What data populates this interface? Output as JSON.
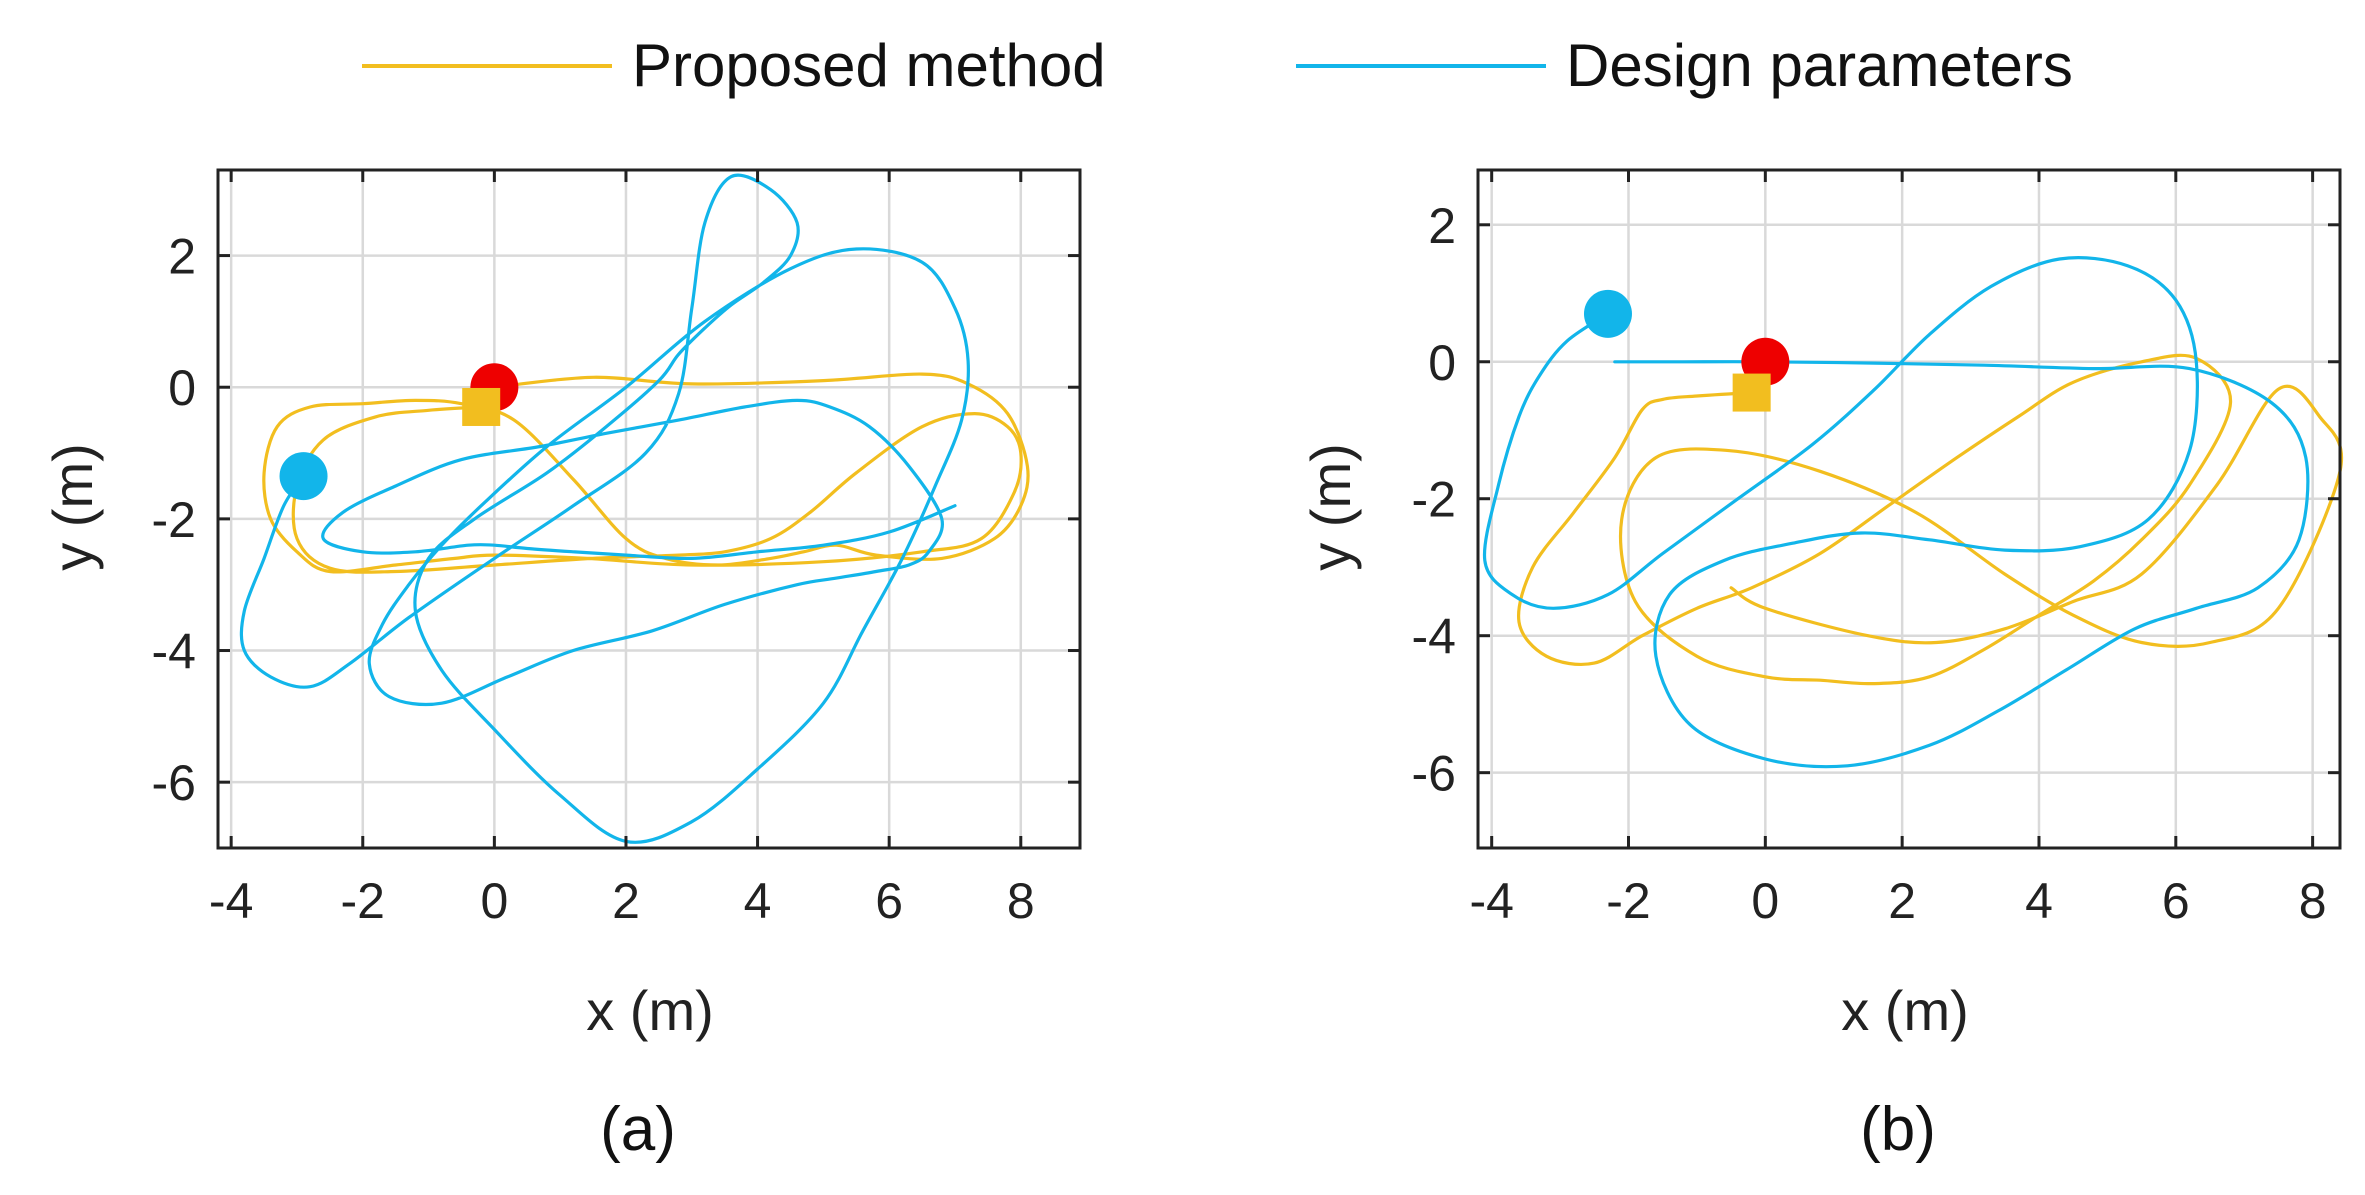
{
  "legend": {
    "items": [
      {
        "label": "Proposed method",
        "color": "#F2BE1F"
      },
      {
        "label": "Design parameters",
        "color": "#12B5EA"
      }
    ]
  },
  "colors": {
    "start_marker": "#EE0000",
    "proposed": "#F2BE1F",
    "design": "#12B5EA",
    "grid": "#d9d9d9",
    "axis": "#222222"
  },
  "chart_data": [
    {
      "type": "line",
      "caption": "(a)",
      "xlabel": "x (m)",
      "ylabel": "y (m)",
      "xlim": [
        -4.2,
        8.9
      ],
      "ylim": [
        -7.0,
        3.3
      ],
      "xticks": [
        -4,
        -2,
        0,
        2,
        4,
        6,
        8
      ],
      "yticks": [
        -6,
        -4,
        -2,
        0,
        2
      ],
      "grid": true,
      "markers": [
        {
          "shape": "circle",
          "color": "#EE0000",
          "x": 0.0,
          "y": 0.0
        },
        {
          "shape": "square",
          "color": "#F2BE1F",
          "x": -0.2,
          "y": -0.3
        },
        {
          "shape": "circle",
          "color": "#12B5EA",
          "x": -2.9,
          "y": -1.35
        }
      ],
      "series": [
        {
          "name": "Proposed method",
          "color": "#F2BE1F",
          "x": [
            0.0,
            1.5,
            3.0,
            5.0,
            6.5,
            7.2,
            7.8,
            8.1,
            8.0,
            7.6,
            6.8,
            5.8,
            5.2,
            4.7,
            4.2,
            3.4,
            2.6,
            2.0,
            1.2,
            0.3,
            -0.5,
            -1.2,
            -2.0,
            -2.8,
            -3.3,
            -3.5,
            -3.4,
            -3.0,
            -2.5,
            -1.5,
            -0.6,
            0.0,
            1.4,
            3.0,
            5.0,
            6.5,
            7.4,
            7.9,
            8.0,
            7.8,
            7.3,
            6.5,
            5.5,
            4.8,
            4.2,
            3.5,
            2.8,
            1.5,
            0.0,
            -1.5,
            -2.5,
            -3.0,
            -3.0,
            -2.6,
            -1.8,
            -1.0,
            -0.2
          ],
          "y": [
            0.0,
            0.15,
            0.05,
            0.1,
            0.2,
            0.05,
            -0.4,
            -1.2,
            -1.8,
            -2.3,
            -2.6,
            -2.55,
            -2.4,
            -2.5,
            -2.6,
            -2.7,
            -2.6,
            -2.3,
            -1.4,
            -0.5,
            -0.25,
            -0.2,
            -0.25,
            -0.3,
            -0.6,
            -1.3,
            -2.0,
            -2.5,
            -2.8,
            -2.7,
            -2.6,
            -2.55,
            -2.6,
            -2.7,
            -2.65,
            -2.5,
            -2.3,
            -1.6,
            -1.0,
            -0.6,
            -0.4,
            -0.6,
            -1.3,
            -1.9,
            -2.3,
            -2.5,
            -2.55,
            -2.6,
            -2.7,
            -2.8,
            -2.75,
            -2.3,
            -1.5,
            -0.8,
            -0.45,
            -0.35,
            -0.3
          ]
        },
        {
          "name": "Design parameters",
          "color": "#12B5EA",
          "x": [
            -2.9,
            -3.2,
            -3.5,
            -3.8,
            -3.8,
            -3.4,
            -2.8,
            -2.2,
            -1.3,
            0.0,
            1.2,
            2.3,
            2.8,
            3.0,
            3.2,
            3.6,
            4.2,
            4.6,
            4.5,
            4.1,
            3.6,
            3.2,
            2.8,
            2.5,
            1.7,
            0.8,
            -0.3,
            -1.0,
            -1.2,
            -0.8,
            0.0,
            1.0,
            2.0,
            3.0,
            4.0,
            5.0,
            5.6,
            6.2,
            6.7,
            7.1,
            7.2,
            7.0,
            6.5,
            5.5,
            4.5,
            3.2,
            2.0,
            0.8,
            -0.2,
            -0.8,
            -1.3,
            -1.7,
            -1.9,
            -1.6,
            -0.8,
            0.2,
            1.2,
            2.4,
            3.5,
            4.6,
            5.2,
            5.8,
            6.3,
            6.6,
            6.8,
            6.3,
            5.7,
            5.1,
            4.6,
            3.8,
            2.8,
            1.7,
            0.7,
            -0.5,
            -1.5,
            -2.3,
            -2.6,
            -2.0,
            -1.2,
            -0.4,
            0.0,
            0.5,
            1.2,
            2.0,
            3.0,
            4.0,
            5.0,
            6.0,
            7.0
          ],
          "y": [
            -1.35,
            -1.8,
            -2.6,
            -3.4,
            -4.0,
            -4.4,
            -4.55,
            -4.2,
            -3.5,
            -2.6,
            -1.8,
            -1.0,
            -0.1,
            1.2,
            2.5,
            3.2,
            3.0,
            2.5,
            2.0,
            1.6,
            1.25,
            0.9,
            0.5,
            0.1,
            -0.6,
            -1.3,
            -2.0,
            -2.6,
            -3.4,
            -4.3,
            -5.2,
            -6.2,
            -6.9,
            -6.6,
            -5.8,
            -4.8,
            -3.7,
            -2.6,
            -1.5,
            -0.5,
            0.4,
            1.2,
            1.9,
            2.1,
            1.8,
            1.0,
            0.0,
            -0.9,
            -1.8,
            -2.4,
            -3.0,
            -3.6,
            -4.2,
            -4.7,
            -4.8,
            -4.4,
            -4.0,
            -3.7,
            -3.3,
            -3.0,
            -2.9,
            -2.8,
            -2.7,
            -2.5,
            -2.0,
            -1.2,
            -0.6,
            -0.3,
            -0.2,
            -0.3,
            -0.5,
            -0.7,
            -0.9,
            -1.1,
            -1.5,
            -1.9,
            -2.3,
            -2.5,
            -2.5,
            -2.4,
            -2.4,
            -2.45,
            -2.5,
            -2.55,
            -2.6,
            -2.5,
            -2.4,
            -2.2,
            -1.8
          ]
        }
      ]
    },
    {
      "type": "line",
      "caption": "(b)",
      "xlabel": "x (m)",
      "ylabel": "y (m)",
      "xlim": [
        -4.2,
        8.4
      ],
      "ylim": [
        -7.1,
        2.8
      ],
      "xticks": [
        -4,
        -2,
        0,
        2,
        4,
        6,
        8
      ],
      "yticks": [
        -6,
        -4,
        -2,
        0,
        2
      ],
      "grid": true,
      "markers": [
        {
          "shape": "circle",
          "color": "#EE0000",
          "x": 0.0,
          "y": 0.0
        },
        {
          "shape": "square",
          "color": "#F2BE1F",
          "x": -0.2,
          "y": -0.45
        },
        {
          "shape": "circle",
          "color": "#12B5EA",
          "x": -2.3,
          "y": 0.7
        }
      ],
      "series": [
        {
          "name": "Proposed method",
          "color": "#F2BE1F",
          "x": [
            -0.2,
            -1.0,
            -1.5,
            -1.8,
            -2.2,
            -2.8,
            -3.4,
            -3.6,
            -3.2,
            -2.5,
            -1.8,
            -1.0,
            -0.2,
            0.8,
            1.8,
            2.8,
            3.7,
            4.5,
            5.5,
            6.3,
            6.8,
            6.2,
            5.5,
            4.8,
            4.0,
            3.2,
            2.4,
            1.6,
            0.8,
            0.0,
            -1.0,
            -1.9,
            -2.1,
            -1.6,
            -0.5,
            0.8,
            2.2,
            3.5,
            4.5,
            5.5,
            6.5,
            7.5,
            8.4,
            8.1,
            7.5,
            6.6,
            5.5,
            4.5,
            3.5,
            2.5,
            1.5,
            0.0,
            -0.5
          ],
          "y": [
            -0.45,
            -0.5,
            -0.55,
            -0.7,
            -1.4,
            -2.2,
            -3.0,
            -3.8,
            -4.3,
            -4.4,
            -4.0,
            -3.6,
            -3.3,
            -2.8,
            -2.1,
            -1.4,
            -0.8,
            -0.3,
            0.0,
            0.05,
            -0.6,
            -1.8,
            -2.6,
            -3.2,
            -3.7,
            -4.2,
            -4.6,
            -4.7,
            -4.65,
            -4.6,
            -4.3,
            -3.5,
            -2.3,
            -1.4,
            -1.3,
            -1.6,
            -2.2,
            -3.1,
            -3.7,
            -4.1,
            -4.1,
            -3.6,
            -1.6,
            -0.8,
            -0.4,
            -1.8,
            -3.1,
            -3.5,
            -3.9,
            -4.1,
            -4.0,
            -3.6,
            -3.3
          ]
        },
        {
          "name": "Design parameters",
          "color": "#12B5EA",
          "x": [
            -2.3,
            -2.9,
            -3.3,
            -3.6,
            -3.9,
            -4.1,
            -3.7,
            -3.1,
            -2.3,
            -1.5,
            -0.4,
            0.7,
            1.6,
            2.4,
            3.3,
            4.3,
            5.3,
            6.0,
            6.3,
            6.2,
            5.6,
            4.6,
            3.5,
            2.4,
            1.4,
            0.4,
            -0.6,
            -1.4,
            -1.6,
            -1.1,
            0.0,
            1.2,
            2.4,
            3.4,
            4.4,
            5.4,
            6.3,
            7.2,
            7.8,
            7.9,
            7.4,
            6.2,
            4.8,
            3.2,
            1.6,
            0.0,
            -1.2,
            -1.8,
            -2.2
          ],
          "y": [
            0.7,
            0.3,
            -0.2,
            -0.8,
            -1.8,
            -2.9,
            -3.4,
            -3.6,
            -3.4,
            -2.8,
            -2.0,
            -1.2,
            -0.4,
            0.4,
            1.1,
            1.5,
            1.4,
            0.9,
            0.0,
            -1.3,
            -2.3,
            -2.7,
            -2.75,
            -2.6,
            -2.5,
            -2.65,
            -2.9,
            -3.4,
            -4.3,
            -5.3,
            -5.8,
            -5.9,
            -5.6,
            -5.1,
            -4.5,
            -3.9,
            -3.6,
            -3.3,
            -2.6,
            -1.4,
            -0.6,
            -0.1,
            -0.1,
            -0.05,
            -0.02,
            0.0,
            0.0,
            0.0,
            0.0
          ]
        }
      ]
    }
  ]
}
